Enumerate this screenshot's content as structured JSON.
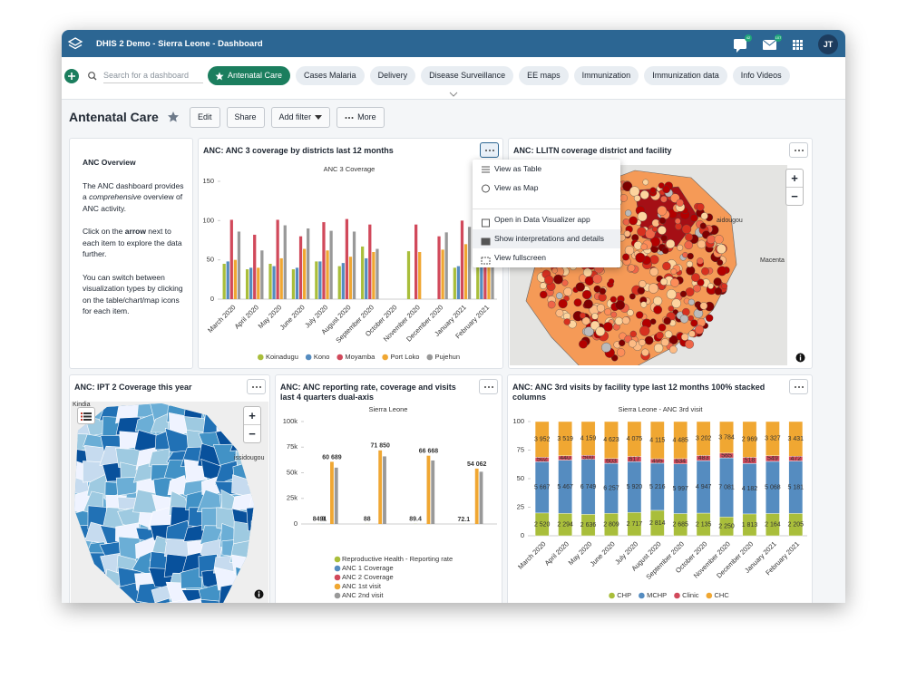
{
  "header": {
    "title": "DHIS 2 Demo - Sierra Leone - Dashboard",
    "messages": "42",
    "interpretations": "107",
    "user": "JT"
  },
  "search_placeholder": "Search for a dashboard",
  "dashboards": [
    "Antenatal Care",
    "Cases Malaria",
    "Delivery",
    "Disease Surveillance",
    "EE maps",
    "Immunization",
    "Immunization data",
    "Info Videos"
  ],
  "dashboard": {
    "title": "Antenatal Care",
    "actions": [
      "Edit",
      "Share",
      "Add filter",
      "More"
    ]
  },
  "text_item": {
    "title": "ANC Overview",
    "paragraphs": [
      [
        "The ANC dashboard provides a ",
        "comprehensive",
        " overview of ANC activity."
      ],
      [
        "Click on the ",
        "arrow",
        " next to each item to explore the data further."
      ],
      [
        "You can switch between visualization types by clicking on the table/chart/map icons for each item."
      ]
    ]
  },
  "item_menu": [
    "View as Table",
    "View as Map",
    "Open in Data Visualizer app",
    "Show interpretations and details",
    "View fullscreen"
  ],
  "maps": [
    {
      "title": "ANC: LLITN coverage district and facility",
      "labels": [
        "aidougou",
        "Macenta"
      ]
    },
    {
      "title": "ANC: IPT 2 Coverage this year",
      "labels": [
        "Kindia",
        "issidougou"
      ]
    }
  ],
  "chart_data": [
    {
      "type": "bar",
      "title": "ANC: ANC 3 coverage by districts last 12 months",
      "subtitle": "ANC 3 Coverage",
      "categories": [
        "March 2020",
        "April 2020",
        "May 2020",
        "June 2020",
        "July 2020",
        "August 2020",
        "September 2020",
        "October 2020",
        "November 2020",
        "December 2020",
        "January 2021",
        "February 2021"
      ],
      "series": [
        {
          "name": "Koinadugu",
          "color": "#a9be3b",
          "values": [
            45,
            38,
            45,
            38,
            48,
            42,
            67,
            null,
            61,
            null,
            40,
            55
          ]
        },
        {
          "name": "Kono",
          "color": "#558cc0",
          "values": [
            48,
            40,
            42,
            40,
            48,
            46,
            52,
            null,
            null,
            null,
            42,
            60
          ]
        },
        {
          "name": "Moyamba",
          "color": "#d1495b",
          "values": [
            101,
            82,
            101,
            80,
            98,
            102,
            95,
            null,
            95,
            80,
            100,
            101
          ]
        },
        {
          "name": "Port Loko",
          "color": "#f0a732",
          "values": [
            50,
            40,
            52,
            64,
            62,
            54,
            60,
            null,
            60,
            63,
            70,
            65
          ]
        },
        {
          "name": "Pujehun",
          "color": "#999999",
          "values": [
            86,
            62,
            94,
            90,
            87,
            86,
            64,
            null,
            null,
            85,
            92,
            88
          ]
        }
      ],
      "ylim": [
        0,
        150
      ],
      "yticks": [
        0,
        50,
        100,
        150
      ],
      "grid": false,
      "legend": "bottom"
    },
    {
      "type": "bar",
      "title": "ANC: ANC reporting rate, coverage and visits last 4 quarters dual-axis",
      "subtitle": "Sierra Leone",
      "categories": [
        "Jan to Mar 2020",
        "Apr to Jun 2020",
        "Jul to Sep 2020",
        "Oct to Dec 2020"
      ],
      "series": [
        {
          "name": "Reproductive Health - Reporting rate",
          "color": "#a9be3b",
          "values": [
            84.9,
            88,
            89.4,
            72.1
          ],
          "data_labels": true
        },
        {
          "name": "ANC 1 Coverage",
          "color": "#558cc0",
          "values": [
            91,
            null,
            null,
            null
          ],
          "data_labels": true
        },
        {
          "name": "ANC 2 Coverage",
          "color": "#d1495b",
          "values": [
            null,
            null,
            null,
            null
          ]
        },
        {
          "name": "ANC 1st visit",
          "color": "#f0a732",
          "values": [
            60689,
            71850,
            66668,
            54062
          ],
          "value_labels": [
            "60 689",
            "71 850",
            "66 668",
            "54 062"
          ],
          "data_labels": true
        },
        {
          "name": "ANC 2nd visit",
          "color": "#999999",
          "values": [
            55000,
            66000,
            62000,
            51000
          ]
        }
      ],
      "ylim": [
        0,
        100000
      ],
      "yticks": [
        0,
        {
          "value": 25000,
          "label": "25k"
        },
        {
          "value": 50000,
          "label": "50k"
        },
        {
          "value": 75000,
          "label": "75k"
        },
        {
          "value": 100000,
          "label": "100k"
        }
      ],
      "grid": false,
      "legend": "bottom"
    },
    {
      "type": "stacked_bar",
      "stacking": "percent",
      "title": "ANC: ANC 3rd visits by facility type last 12 months 100% stacked columns",
      "subtitle": "Sierra Leone - ANC 3rd visit",
      "categories": [
        "March 2020",
        "April 2020",
        "May 2020",
        "June 2020",
        "July 2020",
        "August 2020",
        "September 2020",
        "October 2020",
        "November 2020",
        "December 2020",
        "January 2021",
        "February 2021"
      ],
      "series": [
        {
          "name": "CHP",
          "color": "#a9be3b",
          "values": [
            2520,
            2294,
            2636,
            2809,
            2717,
            2814,
            2685,
            2135,
            2250,
            1813,
            2164,
            2205
          ],
          "value_labels": [
            "2 520",
            "2 294",
            "2 636",
            "2 809",
            "2 717",
            "2 814",
            "2 685",
            "2 135",
            "2 250",
            "1 813",
            "2 164",
            "2 205"
          ]
        },
        {
          "name": "MCHP",
          "color": "#558cc0",
          "values": [
            5667,
            5467,
            6749,
            6257,
            5920,
            5216,
            5997,
            4947,
            7081,
            4182,
            5068,
            5181
          ],
          "value_labels": [
            "5 667",
            "5 467",
            "6 749",
            "6 257",
            "5 920",
            "5 216",
            "5 997",
            "4 947",
            "7 081",
            "4 182",
            "5 068",
            "5 181"
          ]
        },
        {
          "name": "Clinic",
          "color": "#d1495b",
          "values": [
            502,
            440,
            500,
            603,
            617,
            495,
            634,
            483,
            565,
            518,
            549,
            472
          ]
        },
        {
          "name": "CHC",
          "color": "#f0a732",
          "values": [
            3952,
            3519,
            4159,
            4623,
            4075,
            4115,
            4485,
            3202,
            3784,
            2969,
            3327,
            3431
          ],
          "value_labels": [
            "3 952",
            "3 519",
            "4 159",
            "4 623",
            "4 075",
            "4 115",
            "4 485",
            "3 202",
            "3 784",
            "2 969",
            "3 327",
            "3 431"
          ]
        }
      ],
      "ylim": [
        0,
        100
      ],
      "yticks": [
        0,
        25,
        50,
        75,
        100
      ],
      "grid": false,
      "legend": "bottom"
    }
  ]
}
